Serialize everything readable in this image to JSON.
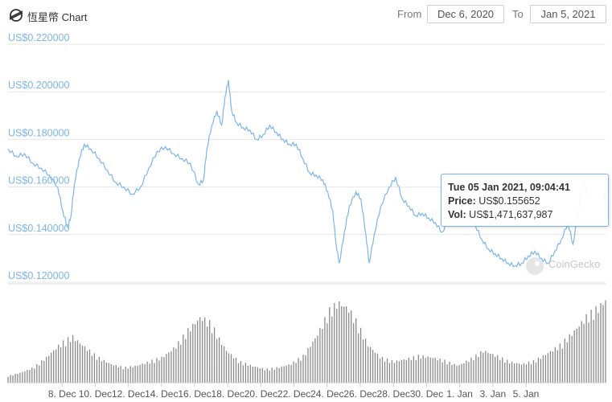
{
  "header": {
    "title": "恆星幣 Chart",
    "from_label": "From",
    "from_date": "Dec 6, 2020",
    "to_label": "To",
    "to_date": "Jan 5, 2021"
  },
  "tooltip": {
    "date": "Tue 05 Jan 2021, 09:04:41",
    "price_label": "Price:",
    "price_value": "US$0.155652",
    "vol_label": "Vol:",
    "vol_value": "US$1,471,637,987"
  },
  "watermark": "CoinGecko",
  "colors": {
    "price_line": "#7cb5ec",
    "axis_text": "#7cb5ec",
    "volume_bars": "#8a8a8a",
    "grid": "#e6e6e6"
  },
  "chart_data": {
    "type": "line",
    "y_axis": {
      "range": [
        0.12,
        0.22
      ],
      "tick_labels": [
        "US$0.220000",
        "US$0.200000",
        "US$0.180000",
        "US$0.160000",
        "US$0.140000",
        "US$0.120000"
      ],
      "tick_values": [
        0.22,
        0.2,
        0.18,
        0.16,
        0.14,
        0.12
      ]
    },
    "x_axis": {
      "tick_labels": [
        "8. Dec",
        "10. Dec",
        "12. Dec",
        "14. Dec",
        "16. Dec",
        "18. Dec",
        "20. Dec",
        "22. Dec",
        "24. Dec",
        "26. Dec",
        "28. Dec",
        "30. Dec",
        "1. Jan",
        "3. Jan",
        "5. Jan"
      ],
      "tick_days": [
        2,
        4,
        6,
        8,
        10,
        12,
        14,
        16,
        18,
        20,
        22,
        24,
        26,
        28,
        30
      ]
    },
    "series": [
      {
        "values": [
          [
            0,
            0.176
          ],
          [
            0.5,
            0.173
          ],
          [
            1,
            0.174
          ],
          [
            1.5,
            0.17
          ],
          [
            2,
            0.168
          ],
          [
            2.5,
            0.165
          ],
          [
            3,
            0.16
          ],
          [
            3.3,
            0.15
          ],
          [
            3.6,
            0.143
          ],
          [
            3.8,
            0.148
          ],
          [
            4,
            0.161
          ],
          [
            4.3,
            0.172
          ],
          [
            4.6,
            0.178
          ],
          [
            5,
            0.176
          ],
          [
            5.5,
            0.172
          ],
          [
            6,
            0.167
          ],
          [
            6.5,
            0.162
          ],
          [
            7,
            0.16
          ],
          [
            7.5,
            0.157
          ],
          [
            8,
            0.16
          ],
          [
            8.5,
            0.168
          ],
          [
            9,
            0.175
          ],
          [
            9.5,
            0.177
          ],
          [
            10,
            0.174
          ],
          [
            10.5,
            0.172
          ],
          [
            11,
            0.17
          ],
          [
            11.5,
            0.161
          ],
          [
            11.8,
            0.163
          ],
          [
            12,
            0.176
          ],
          [
            12.3,
            0.186
          ],
          [
            12.6,
            0.192
          ],
          [
            12.9,
            0.186
          ],
          [
            13.1,
            0.198
          ],
          [
            13.3,
            0.205
          ],
          [
            13.5,
            0.192
          ],
          [
            13.8,
            0.187
          ],
          [
            14.2,
            0.185
          ],
          [
            14.6,
            0.184
          ],
          [
            15,
            0.18
          ],
          [
            15.4,
            0.182
          ],
          [
            15.8,
            0.186
          ],
          [
            16.2,
            0.183
          ],
          [
            16.6,
            0.18
          ],
          [
            17,
            0.178
          ],
          [
            17.4,
            0.178
          ],
          [
            17.8,
            0.172
          ],
          [
            18.2,
            0.166
          ],
          [
            18.6,
            0.165
          ],
          [
            19,
            0.163
          ],
          [
            19.3,
            0.158
          ],
          [
            19.6,
            0.15
          ],
          [
            19.8,
            0.136
          ],
          [
            20,
            0.128
          ],
          [
            20.3,
            0.141
          ],
          [
            20.6,
            0.152
          ],
          [
            21,
            0.158
          ],
          [
            21.3,
            0.155
          ],
          [
            21.6,
            0.14
          ],
          [
            21.8,
            0.128
          ],
          [
            22.1,
            0.14
          ],
          [
            22.5,
            0.152
          ],
          [
            23,
            0.16
          ],
          [
            23.4,
            0.164
          ],
          [
            23.8,
            0.155
          ],
          [
            24.2,
            0.152
          ],
          [
            24.6,
            0.148
          ],
          [
            25,
            0.149
          ],
          [
            25.4,
            0.147
          ],
          [
            25.8,
            0.145
          ],
          [
            26.2,
            0.141
          ],
          [
            26.6,
            0.146
          ],
          [
            27,
            0.151
          ],
          [
            27.4,
            0.146
          ],
          [
            27.8,
            0.149
          ],
          [
            28.2,
            0.144
          ],
          [
            28.6,
            0.138
          ],
          [
            29,
            0.134
          ],
          [
            29.4,
            0.132
          ],
          [
            29.8,
            0.13
          ],
          [
            30.2,
            0.128
          ],
          [
            30.6,
            0.127
          ],
          [
            31,
            0.128
          ],
          [
            31.4,
            0.131
          ],
          [
            31.8,
            0.133
          ],
          [
            32.2,
            0.13
          ],
          [
            32.6,
            0.128
          ],
          [
            33,
            0.133
          ],
          [
            33.4,
            0.138
          ],
          [
            33.8,
            0.145
          ],
          [
            34.1,
            0.136
          ],
          [
            34.4,
            0.148
          ],
          [
            34.7,
            0.163
          ],
          [
            35,
            0.156
          ]
        ]
      }
    ],
    "volume": {
      "max": 1.0,
      "values": [
        [
          0,
          0.08
        ],
        [
          1,
          0.12
        ],
        [
          2,
          0.18
        ],
        [
          3,
          0.3
        ],
        [
          4,
          0.45
        ],
        [
          5,
          0.55
        ],
        [
          6,
          0.42
        ],
        [
          7,
          0.3
        ],
        [
          8,
          0.22
        ],
        [
          9,
          0.18
        ],
        [
          10,
          0.2
        ],
        [
          11,
          0.25
        ],
        [
          12,
          0.3
        ],
        [
          13,
          0.42
        ],
        [
          14,
          0.62
        ],
        [
          15,
          0.78
        ],
        [
          15.8,
          0.7
        ],
        [
          16.5,
          0.5
        ],
        [
          17,
          0.38
        ],
        [
          18,
          0.25
        ],
        [
          19,
          0.2
        ],
        [
          20,
          0.16
        ],
        [
          21,
          0.18
        ],
        [
          22,
          0.22
        ],
        [
          23,
          0.32
        ],
        [
          24,
          0.55
        ],
        [
          25,
          0.85
        ],
        [
          25.7,
          0.95
        ],
        [
          26.5,
          0.88
        ],
        [
          27.2,
          0.7
        ],
        [
          28,
          0.45
        ],
        [
          29,
          0.3
        ],
        [
          30,
          0.25
        ],
        [
          31,
          0.28
        ],
        [
          32,
          0.32
        ],
        [
          33,
          0.3
        ],
        [
          34,
          0.26
        ],
        [
          35,
          0.2
        ],
        [
          36,
          0.28
        ],
        [
          37,
          0.38
        ],
        [
          38,
          0.32
        ],
        [
          39,
          0.25
        ],
        [
          40,
          0.22
        ],
        [
          41,
          0.26
        ],
        [
          42,
          0.35
        ],
        [
          43,
          0.45
        ],
        [
          44,
          0.6
        ],
        [
          45,
          0.78
        ],
        [
          46,
          0.9
        ],
        [
          46.5,
          0.98
        ]
      ]
    }
  }
}
